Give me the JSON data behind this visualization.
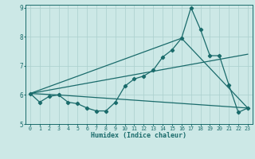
{
  "xlabel": "Humidex (Indice chaleur)",
  "xlim": [
    -0.5,
    23.5
  ],
  "ylim": [
    5,
    9.1
  ],
  "yticks": [
    5,
    6,
    7,
    8,
    9
  ],
  "xticks": [
    0,
    1,
    2,
    3,
    4,
    5,
    6,
    7,
    8,
    9,
    10,
    11,
    12,
    13,
    14,
    15,
    16,
    17,
    18,
    19,
    20,
    21,
    22,
    23
  ],
  "bg_color": "#cce8e6",
  "line_color": "#1a6b6b",
  "grid_color": "#aacfcd",
  "line1_x": [
    0,
    1,
    2,
    3,
    4,
    5,
    6,
    7,
    8,
    9,
    10,
    11,
    12,
    13,
    14,
    15,
    16,
    17,
    18,
    19,
    20,
    21,
    22,
    23
  ],
  "line1_y": [
    6.05,
    5.75,
    5.95,
    6.0,
    5.75,
    5.7,
    5.55,
    5.45,
    5.45,
    5.75,
    6.3,
    6.55,
    6.65,
    6.85,
    7.3,
    7.55,
    7.95,
    9.0,
    8.25,
    7.35,
    7.35,
    6.35,
    5.4,
    5.55
  ],
  "line2_x": [
    0,
    3,
    23
  ],
  "line2_y": [
    6.05,
    6.0,
    5.55
  ],
  "line3_x": [
    0,
    16,
    23
  ],
  "line3_y": [
    6.05,
    7.95,
    5.55
  ],
  "line4_x": [
    0,
    23
  ],
  "line4_y": [
    6.05,
    7.4
  ]
}
